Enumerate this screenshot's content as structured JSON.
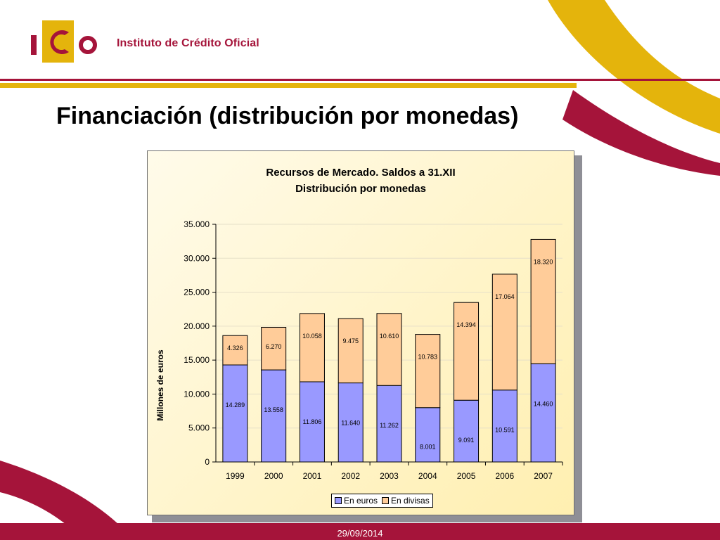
{
  "header": {
    "org_name": "Instituto de Crédito Oficial",
    "logo_letters": "ICO"
  },
  "slide": {
    "title": "Financiación (distribución por monedas)"
  },
  "footer": {
    "date": "29/09/2014"
  },
  "colors": {
    "brand_red": "#a5143a",
    "brand_yellow": "#e4b40c",
    "euros": "#9999ff",
    "divisas": "#ffcc99"
  },
  "chart_data": {
    "type": "bar",
    "stacked": true,
    "title": "Recursos de Mercado. Saldos a 31.XII",
    "subtitle": "Distribución por monedas",
    "xlabel": "",
    "ylabel": "Millones de euros",
    "ylim": [
      0,
      35000
    ],
    "yticks": [
      0,
      5000,
      10000,
      15000,
      20000,
      25000,
      30000,
      35000
    ],
    "ytick_labels": [
      "0",
      "5.000",
      "10.000",
      "15.000",
      "20.000",
      "25.000",
      "30.000",
      "35.000"
    ],
    "categories": [
      "1999",
      "2000",
      "2001",
      "2002",
      "2003",
      "2004",
      "2005",
      "2006",
      "2007"
    ],
    "series": [
      {
        "name": "En euros",
        "values": [
          14289,
          13558,
          11806,
          11640,
          11262,
          8001,
          9091,
          10591,
          14460
        ],
        "labels": [
          "14.289",
          "13.558",
          "11.806",
          "11.640",
          "11.262",
          "8.001",
          "9.091",
          "10.591",
          "14.460"
        ]
      },
      {
        "name": "En divisas",
        "values": [
          4326,
          6270,
          10058,
          9475,
          10610,
          10783,
          14394,
          17064,
          18320
        ],
        "labels": [
          "4.326",
          "6.270",
          "10.058",
          "9.475",
          "10.610",
          "10.783",
          "14.394",
          "17.064",
          "18.320"
        ]
      }
    ],
    "grid": true,
    "legend_position": "bottom"
  }
}
